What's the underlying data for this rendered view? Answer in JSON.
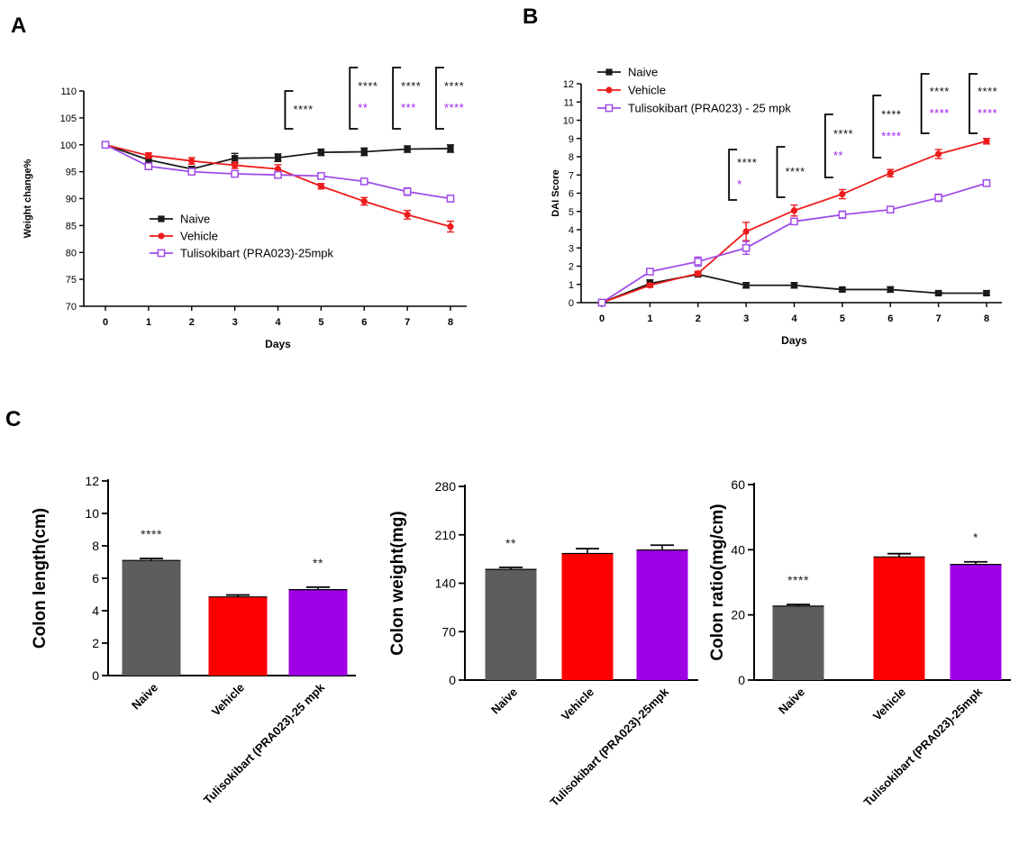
{
  "panel_labels": {
    "a": "A",
    "b": "B",
    "c": "C"
  },
  "colors": {
    "naive": "#1a1a1a",
    "vehicle": "#ee1c1c",
    "tulisokibart": "#a04ce8",
    "bar_naive": "#5d5d5d",
    "bar_vehicle": "#ff0000",
    "bar_tulisokibart": "#a000e6",
    "sig_black": "#111111",
    "sig_purple": "#a020f0"
  },
  "chart_data": [
    {
      "id": "A",
      "type": "line",
      "title": "",
      "xlabel": "Days",
      "ylabel": "Weight change%",
      "ylim": [
        70,
        110
      ],
      "yticks": [
        70,
        75,
        80,
        85,
        90,
        95,
        100,
        105,
        110
      ],
      "x": [
        0,
        1,
        2,
        3,
        4,
        5,
        6,
        7,
        8
      ],
      "legend_position": "center-left",
      "series": [
        {
          "name": "Naive",
          "key": "naive",
          "marker": "square",
          "values": [
            100,
            97.2,
            95.5,
            97.5,
            97.6,
            98.6,
            98.7,
            99.2,
            99.3
          ],
          "errors": [
            0.2,
            0.5,
            0.5,
            0.9,
            0.7,
            0.6,
            0.7,
            0.6,
            0.7
          ]
        },
        {
          "name": "Vehicle",
          "key": "vehicle",
          "marker": "circle",
          "values": [
            100,
            98.0,
            97.0,
            96.2,
            95.5,
            92.3,
            89.5,
            87.0,
            84.8
          ],
          "errors": [
            0.2,
            0.5,
            0.6,
            0.6,
            0.8,
            0.5,
            0.7,
            0.8,
            1.0
          ]
        },
        {
          "name": "Tulisokibart (PRA023)-25mpk",
          "key": "tulisokibart",
          "marker": "open-square",
          "values": [
            100,
            96.0,
            95.0,
            94.6,
            94.4,
            94.2,
            93.2,
            91.3,
            90.0
          ],
          "errors": [
            0.2,
            0.4,
            0.4,
            0.5,
            0.5,
            0.5,
            0.5,
            0.7,
            0.6
          ]
        }
      ],
      "significance": [
        {
          "day": 4.5,
          "black": "****",
          "purple": ""
        },
        {
          "day": 6,
          "black": "****",
          "purple": "**"
        },
        {
          "day": 7,
          "black": "****",
          "purple": "***"
        },
        {
          "day": 8,
          "black": "****",
          "purple": "****"
        }
      ]
    },
    {
      "id": "B",
      "type": "line",
      "title": "",
      "xlabel": "Days",
      "ylabel": "DAI Score",
      "ylim": [
        0,
        12
      ],
      "yticks": [
        0,
        1,
        2,
        3,
        4,
        5,
        6,
        7,
        8,
        9,
        10,
        11,
        12
      ],
      "x": [
        0,
        1,
        2,
        3,
        4,
        5,
        6,
        7,
        8
      ],
      "legend_position": "top-left",
      "series": [
        {
          "name": "Naive",
          "key": "naive",
          "marker": "square",
          "values": [
            0,
            1.05,
            1.55,
            0.95,
            0.95,
            0.72,
            0.72,
            0.52,
            0.52
          ],
          "errors": [
            0,
            0.2,
            0.12,
            0.15,
            0.15,
            0.1,
            0.15,
            0.08,
            0.12
          ]
        },
        {
          "name": "Vehicle",
          "key": "vehicle",
          "marker": "circle",
          "values": [
            0,
            0.95,
            1.6,
            3.9,
            5.05,
            5.95,
            7.1,
            8.15,
            8.85
          ],
          "errors": [
            0,
            0.1,
            0.12,
            0.5,
            0.3,
            0.25,
            0.2,
            0.25,
            0.15
          ]
        },
        {
          "name": "Tulisokibart (PRA023) - 25 mpk",
          "key": "tulisokibart",
          "marker": "open-square",
          "values": [
            0,
            1.7,
            2.25,
            3.0,
            4.45,
            4.82,
            5.1,
            5.75,
            6.55
          ],
          "errors": [
            0,
            0.12,
            0.25,
            0.35,
            0.15,
            0.2,
            0.15,
            0.2,
            0.15
          ]
        }
      ],
      "significance": [
        {
          "day": 3,
          "black": "****",
          "purple": "*"
        },
        {
          "day": 4,
          "black": "****",
          "purple": ""
        },
        {
          "day": 5,
          "black": "****",
          "purple": "**"
        },
        {
          "day": 6,
          "black": "****",
          "purple": "****"
        },
        {
          "day": 7,
          "black": "****",
          "purple": "****"
        },
        {
          "day": 8,
          "black": "****",
          "purple": "****"
        }
      ]
    },
    {
      "id": "C1",
      "type": "bar",
      "ylabel": "Colon length(cm)",
      "ylim": [
        0,
        12
      ],
      "yticks": [
        0,
        2,
        4,
        6,
        8,
        10,
        12
      ],
      "categories": [
        "Naive",
        "Vehicle",
        "Tulisokibart (PRA023)-25 mpk"
      ],
      "values": [
        7.1,
        4.85,
        5.3
      ],
      "errors": [
        0.12,
        0.12,
        0.15
      ],
      "stars": [
        "****",
        "",
        "**"
      ]
    },
    {
      "id": "C2",
      "type": "bar",
      "ylabel": "Colon weight(mg)",
      "ylim": [
        0,
        280
      ],
      "yticks": [
        0,
        70,
        140,
        210,
        280
      ],
      "categories": [
        "Naive",
        "Vehicle",
        "Tulisokibart (PRA023)-25mpk"
      ],
      "values": [
        160,
        183,
        188
      ],
      "errors": [
        3,
        7,
        7
      ],
      "stars": [
        "**",
        "",
        ""
      ]
    },
    {
      "id": "C3",
      "type": "bar",
      "ylabel": "Colon ratio(mg/cm)",
      "ylim": [
        0,
        60
      ],
      "yticks": [
        0,
        20,
        40,
        60
      ],
      "categories": [
        "Naive",
        "Vehicle",
        "Tulisokibart (PRA023)-25mpk"
      ],
      "values": [
        22.7,
        37.8,
        35.5
      ],
      "errors": [
        0.5,
        1.0,
        0.8
      ],
      "stars": [
        "****",
        "",
        "*"
      ]
    }
  ]
}
